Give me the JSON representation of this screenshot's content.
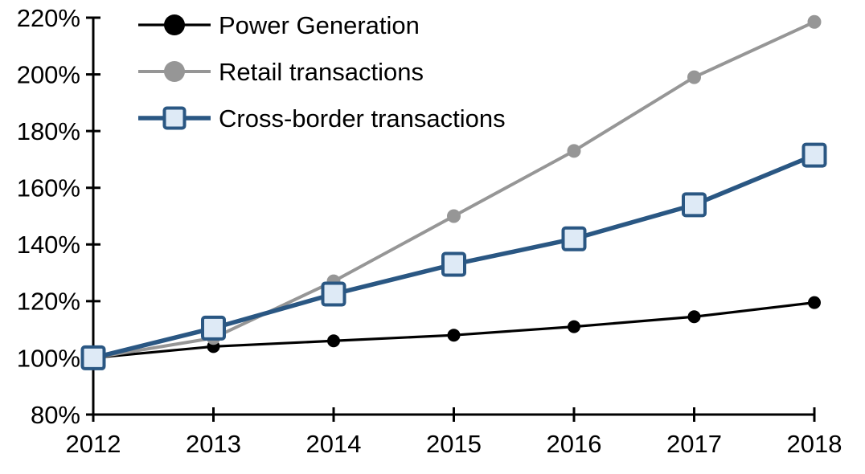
{
  "chart_data": {
    "type": "line",
    "title": "",
    "xlabel": "",
    "ylabel": "",
    "grid": "off",
    "legend_position": "top-left-inside",
    "x_categories": [
      "2012",
      "2013",
      "2014",
      "2015",
      "2016",
      "2017",
      "2018"
    ],
    "y_tick_labels": [
      "80%",
      "100%",
      "120%",
      "140%",
      "160%",
      "180%",
      "200%",
      "220%"
    ],
    "y_tick_values": [
      80,
      100,
      120,
      140,
      160,
      180,
      200,
      220
    ],
    "ylim": [
      80,
      220
    ],
    "axis_color": "#000000",
    "series": [
      {
        "name": "Power Generation",
        "values": [
          100,
          104,
          106,
          108,
          111,
          114.5,
          119.5
        ],
        "line_color": "#000000",
        "line_width": 3.2,
        "marker": "circle",
        "marker_fill": "#000000",
        "marker_stroke": "#000000",
        "marker_size": 15
      },
      {
        "name": "Retail transactions",
        "values": [
          100,
          107,
          127,
          150,
          173,
          199,
          218.5
        ],
        "line_color": "#969696",
        "line_width": 4,
        "marker": "circle",
        "marker_fill": "#969696",
        "marker_stroke": "#969696",
        "marker_size": 16
      },
      {
        "name": "Cross-border transactions",
        "values": [
          100,
          110.5,
          122.5,
          133,
          142,
          154,
          171.5
        ],
        "line_color": "#2A5783",
        "line_width": 5.5,
        "marker": "square",
        "marker_fill": "#DEEAF6",
        "marker_stroke": "#2A5783",
        "marker_size": 27
      }
    ]
  }
}
